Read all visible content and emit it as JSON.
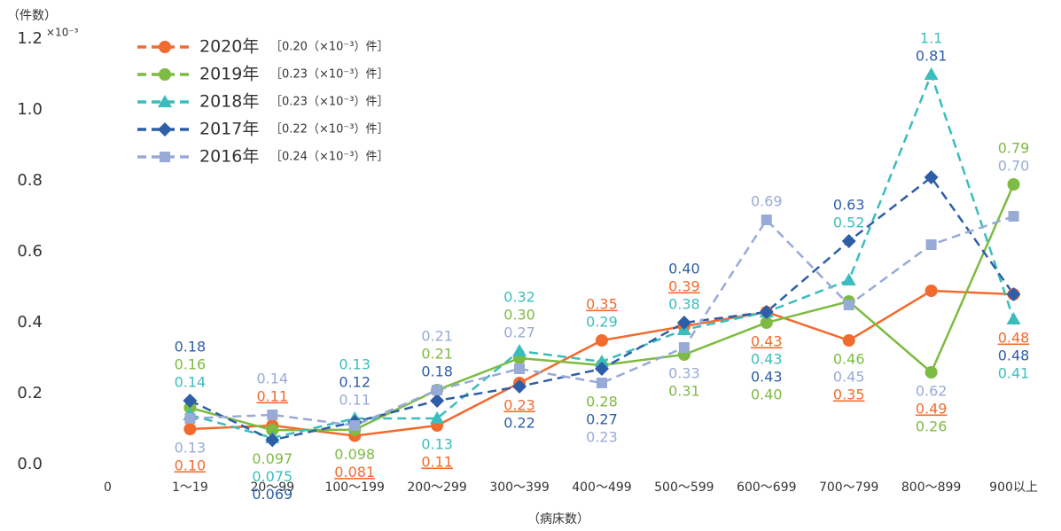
{
  "chart_data": {
    "type": "line",
    "y_unit_label": "（件数）",
    "y_scale_label": "×10⁻³",
    "x_label": "（病床数）",
    "categories": [
      "0",
      "1〜19",
      "20〜99",
      "100〜199",
      "200〜299",
      "300〜399",
      "400〜499",
      "500〜599",
      "600〜699",
      "700〜799",
      "800〜899",
      "900以上"
    ],
    "ylim": [
      0,
      1.2
    ],
    "yticks": [
      {
        "value": 0,
        "label": "0.0"
      },
      0.2,
      0.4,
      0.6,
      0.8,
      {
        "value": 1,
        "label": "1.0"
      },
      1.2
    ],
    "grid": false,
    "legend": "top-left",
    "series": [
      {
        "name": "2020年",
        "average_label": "［0.20（×10⁻³）件］",
        "color": "#f26b2e",
        "marker": "circle",
        "dashed": false,
        "values": [
          null,
          0.1,
          0.11,
          0.081,
          0.11,
          0.23,
          0.35,
          0.39,
          0.43,
          0.35,
          0.49,
          0.48
        ],
        "value_labels": [
          null,
          "0.10",
          "0.11",
          "0.081",
          "0.11",
          "0.23",
          "0.35",
          "0.39",
          "0.43",
          "0.35",
          "0.49",
          "0.48"
        ]
      },
      {
        "name": "2019年",
        "average_label": "［0.23（×10⁻³）件］",
        "color": "#7dbb42",
        "marker": "circle",
        "dashed": false,
        "values": [
          null,
          0.16,
          0.097,
          0.098,
          0.21,
          0.3,
          0.28,
          0.31,
          0.4,
          0.46,
          0.26,
          0.79
        ],
        "value_labels": [
          null,
          "0.16",
          "0.097",
          "0.098",
          "0.21",
          "0.30",
          "0.28",
          "0.31",
          "0.40",
          "0.46",
          "0.26",
          "0.79"
        ]
      },
      {
        "name": "2018年",
        "average_label": "［0.23（×10⁻³）件］",
        "color": "#3bbdbd",
        "marker": "triangle",
        "dashed": true,
        "values": [
          null,
          0.14,
          0.075,
          0.13,
          0.13,
          0.32,
          0.29,
          0.38,
          0.43,
          0.52,
          1.1,
          0.41
        ],
        "value_labels": [
          null,
          "0.14",
          "0.075",
          "0.13",
          "0.13",
          "0.32",
          "0.29",
          "0.38",
          "0.43",
          "0.52",
          "1.1",
          "0.41"
        ]
      },
      {
        "name": "2017年",
        "average_label": "［0.22（×10⁻³）件］",
        "color": "#2e5ea8",
        "marker": "diamond",
        "dashed": true,
        "values": [
          null,
          0.18,
          0.069,
          0.12,
          0.18,
          0.22,
          0.27,
          0.4,
          0.43,
          0.63,
          0.81,
          0.48
        ],
        "value_labels": [
          null,
          "0.18",
          "0.069",
          "0.12",
          "0.18",
          "0.22",
          "0.27",
          "0.40",
          "0.43",
          "0.63",
          "0.81",
          "0.48"
        ]
      },
      {
        "name": "2016年",
        "average_label": "［0.24（×10⁻³）件］",
        "color": "#98aad6",
        "marker": "square",
        "dashed": true,
        "values": [
          null,
          0.13,
          0.14,
          0.11,
          0.21,
          0.27,
          0.23,
          0.33,
          0.69,
          0.45,
          0.62,
          0.7
        ],
        "value_labels": [
          null,
          "0.13",
          "0.14",
          "0.11",
          "0.21",
          "0.27",
          "0.23",
          "0.33",
          "0.69",
          "0.45",
          "0.62",
          "0.70"
        ]
      }
    ]
  }
}
